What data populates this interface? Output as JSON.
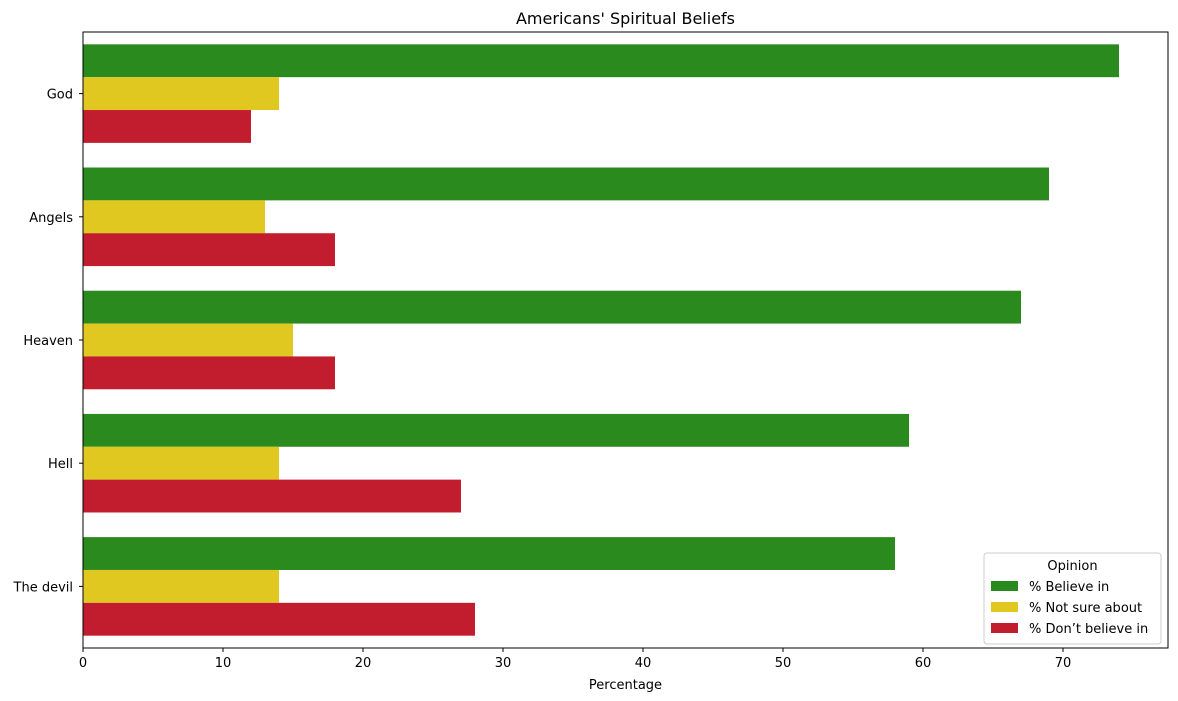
{
  "chart_data": {
    "type": "bar",
    "orientation": "horizontal",
    "title": "Americans' Spiritual Beliefs",
    "xlabel": "Percentage",
    "ylabel": "",
    "xlim": [
      0,
      77.5
    ],
    "xticks": [
      "0",
      "10",
      "20",
      "30",
      "40",
      "50",
      "60",
      "70"
    ],
    "categories": [
      "God",
      "Angels",
      "Heaven",
      "Hell",
      "The devil"
    ],
    "series": [
      {
        "name": "% Believe in",
        "color": "#2a8a1e",
        "values": [
          74,
          69,
          67,
          59,
          58
        ]
      },
      {
        "name": "% Not sure about",
        "color": "#e0c820",
        "values": [
          14,
          13,
          15,
          14,
          14
        ]
      },
      {
        "name": "% Don’t believe in",
        "color": "#c21d2e",
        "values": [
          12,
          18,
          18,
          27,
          28
        ]
      }
    ],
    "legend": {
      "title": "Opinion",
      "placement": "lower-right"
    },
    "grid": false
  }
}
